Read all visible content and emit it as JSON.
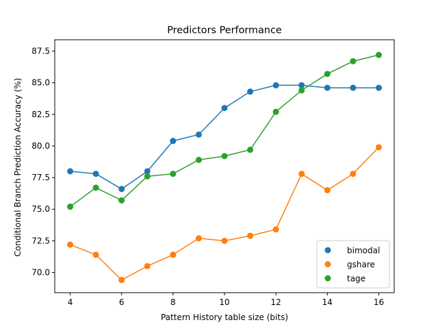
{
  "chart_data": {
    "type": "line",
    "title": "Predictors Performance",
    "xlabel": "Pattern History table size (bits)",
    "ylabel": "Conditional Branch Prediction Accuracy (%)",
    "x": [
      4,
      5,
      6,
      7,
      8,
      9,
      10,
      11,
      12,
      13,
      14,
      15,
      16
    ],
    "xlim": [
      3.4,
      16.6
    ],
    "ylim": [
      68.4,
      88.4
    ],
    "xticks": [
      4,
      6,
      8,
      10,
      12,
      14,
      16
    ],
    "yticks": [
      70.0,
      72.5,
      75.0,
      77.5,
      80.0,
      82.5,
      85.0,
      87.5
    ],
    "xtick_labels": [
      "4",
      "6",
      "8",
      "10",
      "12",
      "14",
      "16"
    ],
    "ytick_labels": [
      "70.0",
      "72.5",
      "75.0",
      "77.5",
      "80.0",
      "82.5",
      "85.0",
      "87.5"
    ],
    "grid": false,
    "legend_position": "lower-right",
    "series": [
      {
        "name": "bimodal",
        "color": "#1f77b4",
        "values": [
          78.0,
          77.8,
          76.6,
          78.0,
          80.4,
          80.9,
          83.0,
          84.3,
          84.8,
          84.8,
          84.6,
          84.6,
          84.6
        ]
      },
      {
        "name": "gshare",
        "color": "#ff7f0e",
        "values": [
          72.2,
          71.4,
          69.4,
          70.5,
          71.4,
          72.7,
          72.5,
          72.9,
          73.4,
          77.8,
          76.5,
          77.8,
          79.9
        ]
      },
      {
        "name": "tage",
        "color": "#2ca02c",
        "values": [
          75.2,
          76.7,
          75.7,
          77.6,
          77.8,
          78.9,
          79.2,
          79.7,
          82.7,
          84.4,
          85.7,
          86.7,
          87.2
        ]
      }
    ]
  }
}
